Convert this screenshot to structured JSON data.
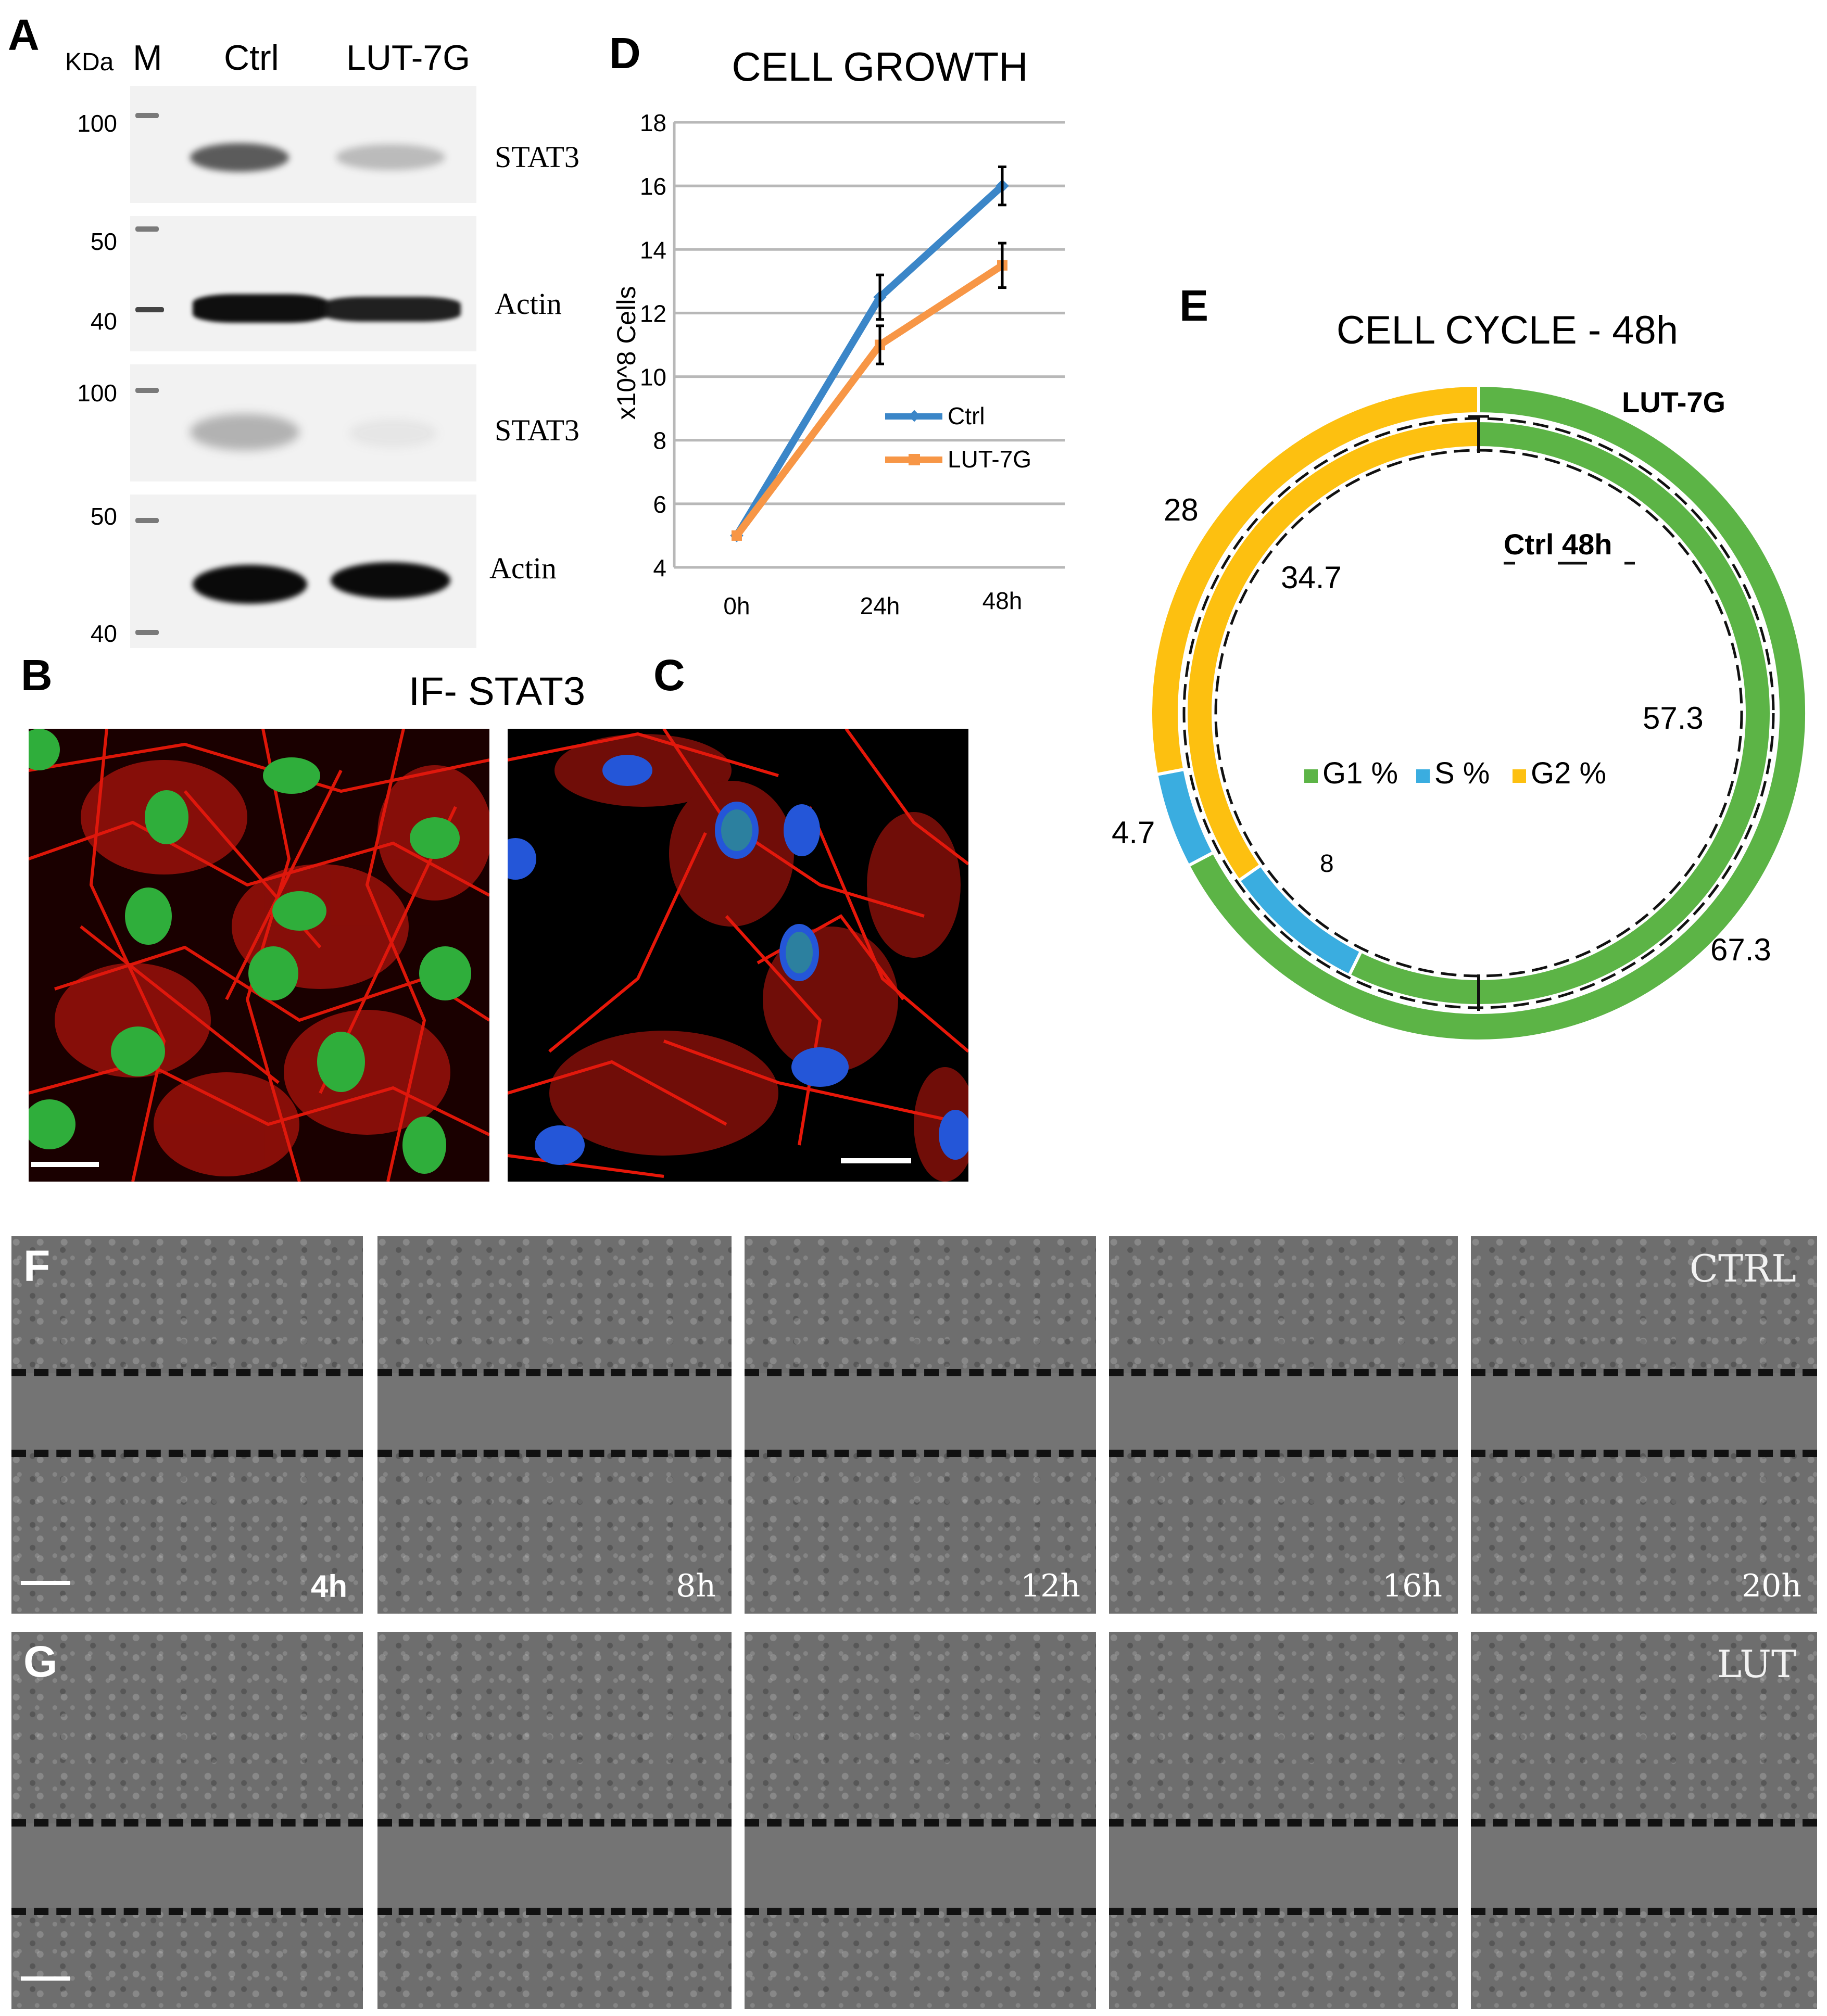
{
  "panels": {
    "a": "A",
    "b": "B",
    "c": "C",
    "d": "D",
    "e": "E",
    "f": "F",
    "g": "G"
  },
  "western_blot": {
    "kda_label": "KDa",
    "marker_label": "M",
    "lanes": [
      "Ctrl",
      "LUT-7G"
    ],
    "rows": [
      {
        "name": "STAT3",
        "mw": [
          "100"
        ],
        "ctrl_intensity": 0.75,
        "lut_intensity": 0.3
      },
      {
        "name": "Actin",
        "mw": [
          "50",
          "40"
        ],
        "ctrl_intensity": 1.0,
        "lut_intensity": 0.95
      },
      {
        "name": "STAT3",
        "mw": [
          "100"
        ],
        "ctrl_intensity": 0.35,
        "lut_intensity": 0.08
      },
      {
        "name": "Actin",
        "mw": [
          "50",
          "40"
        ],
        "ctrl_intensity": 1.0,
        "lut_intensity": 1.0
      }
    ]
  },
  "if_title": "IF- STAT3",
  "chart_data": [
    {
      "type": "line",
      "title": "CELL GROWTH",
      "xlabel": "",
      "ylabel": "x10^8 Cells",
      "categories": [
        "0h",
        "24h",
        "48h"
      ],
      "ylim": [
        4,
        18
      ],
      "yticks": [
        "4",
        "6",
        "8",
        "10",
        "12",
        "14",
        "16",
        "18"
      ],
      "grid": true,
      "legend": "center-right",
      "series": [
        {
          "name": "Ctrl",
          "values": [
            5,
            12.5,
            16
          ],
          "errors": [
            0,
            0.7,
            0.6
          ],
          "color": "#3b86c8"
        },
        {
          "name": "LUT-7G",
          "values": [
            5,
            11,
            13.5
          ],
          "errors": [
            0,
            0.6,
            0.7
          ],
          "color": "#f79646"
        }
      ]
    },
    {
      "type": "pie",
      "title": "CELL CYCLE - 48h",
      "outer_label": "LUT-7G",
      "inner_label": "Ctrl 48h",
      "legend": "center",
      "categories": [
        "G1 %",
        "S %",
        "G2 %"
      ],
      "colors": [
        "#5cb446",
        "#3aade0",
        "#fdc010"
      ],
      "series": [
        {
          "name": "LUT-7G",
          "values": [
            67.3,
            4.7,
            28
          ],
          "labels": [
            "67.3",
            "4.7",
            "28"
          ]
        },
        {
          "name": "Ctrl 48h",
          "values": [
            57.3,
            8,
            34.7
          ],
          "labels": [
            "57.3",
            "8",
            "34.7"
          ]
        }
      ]
    }
  ],
  "scratch": {
    "times": [
      "4h",
      "8h",
      "12h",
      "16h",
      "20h"
    ],
    "row_f_tag": "CTRL",
    "row_g_tag": "LUT"
  }
}
